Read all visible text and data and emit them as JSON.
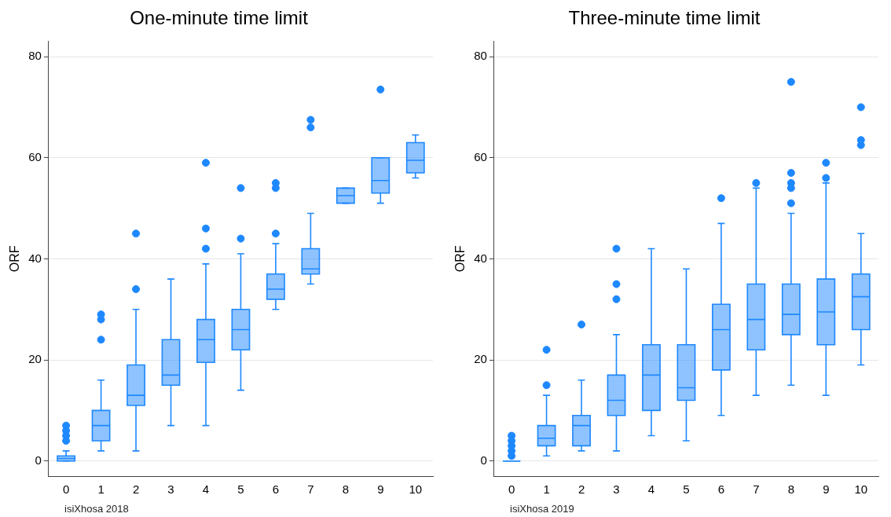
{
  "chart_data": [
    {
      "type": "box",
      "title": "One-minute time limit",
      "ylabel": "ORF",
      "categories": [
        "0",
        "1",
        "2",
        "3",
        "4",
        "5",
        "6",
        "7",
        "8",
        "9",
        "10"
      ],
      "color": "#1e88ff",
      "ylim": [
        -3,
        83
      ],
      "yticks": [
        0,
        20,
        40,
        60,
        80
      ],
      "grid": "y",
      "annotations": [
        "isiXhosa 2018"
      ],
      "boxes": [
        {
          "low": 0,
          "q1": 0,
          "median": 0.5,
          "q3": 1,
          "high": 2,
          "outliers": [
            4,
            5,
            6,
            7
          ]
        },
        {
          "low": 2,
          "q1": 4,
          "median": 7,
          "q3": 10,
          "high": 16,
          "outliers": [
            24,
            28,
            29
          ]
        },
        {
          "low": 2,
          "q1": 11,
          "median": 13,
          "q3": 19,
          "high": 30,
          "outliers": [
            34,
            45
          ]
        },
        {
          "low": 7,
          "q1": 15,
          "median": 17,
          "q3": 24,
          "high": 36
        },
        {
          "low": 7,
          "q1": 19.5,
          "median": 24,
          "q3": 28,
          "high": 39,
          "outliers": [
            42,
            46,
            59
          ]
        },
        {
          "low": 14,
          "q1": 22,
          "median": 26,
          "q3": 30,
          "high": 41,
          "outliers": [
            44,
            54
          ]
        },
        {
          "low": 30,
          "q1": 32,
          "median": 34,
          "q3": 37,
          "high": 43,
          "outliers": [
            45,
            54,
            55
          ]
        },
        {
          "low": 35,
          "q1": 37,
          "median": 38,
          "q3": 42,
          "high": 49,
          "outliers": [
            66,
            67.5
          ]
        },
        {
          "low": 51,
          "q1": 51,
          "median": 52.5,
          "q3": 54,
          "high": 54
        },
        {
          "low": 51,
          "q1": 53,
          "median": 55.5,
          "q3": 60,
          "high": 60,
          "outliers": [
            73.5
          ]
        },
        {
          "low": 56,
          "q1": 57,
          "median": 59.5,
          "q3": 63,
          "high": 64.5
        }
      ]
    },
    {
      "type": "box",
      "title": "Three-minute time limit",
      "ylabel": "ORF",
      "categories": [
        "0",
        "1",
        "2",
        "3",
        "4",
        "5",
        "6",
        "7",
        "8",
        "9",
        "10"
      ],
      "color": "#1e88ff",
      "ylim": [
        -3,
        83
      ],
      "yticks": [
        0,
        20,
        40,
        60,
        80
      ],
      "grid": "y",
      "annotations": [
        "isiXhosa 2019"
      ],
      "boxes": [
        {
          "low": 0,
          "q1": 0,
          "median": 0,
          "q3": 0,
          "high": 0,
          "outliers": [
            1,
            2,
            3,
            4,
            5
          ]
        },
        {
          "low": 1,
          "q1": 3,
          "median": 4.5,
          "q3": 7,
          "high": 13,
          "outliers": [
            15,
            22
          ]
        },
        {
          "low": 2,
          "q1": 3,
          "median": 7,
          "q3": 9,
          "high": 16,
          "outliers": [
            27
          ]
        },
        {
          "low": 2,
          "q1": 9,
          "median": 12,
          "q3": 17,
          "high": 25,
          "outliers": [
            32,
            35,
            42
          ]
        },
        {
          "low": 5,
          "q1": 10,
          "median": 17,
          "q3": 23,
          "high": 42
        },
        {
          "low": 4,
          "q1": 12,
          "median": 14.5,
          "q3": 23,
          "high": 38
        },
        {
          "low": 9,
          "q1": 18,
          "median": 26,
          "q3": 31,
          "high": 47,
          "outliers": [
            52
          ]
        },
        {
          "low": 13,
          "q1": 22,
          "median": 28,
          "q3": 35,
          "high": 54,
          "outliers": [
            55
          ]
        },
        {
          "low": 15,
          "q1": 25,
          "median": 29,
          "q3": 35,
          "high": 49,
          "outliers": [
            51,
            54,
            55,
            57,
            75
          ]
        },
        {
          "low": 13,
          "q1": 23,
          "median": 29.5,
          "q3": 36,
          "high": 55,
          "outliers": [
            56,
            59
          ]
        },
        {
          "low": 19,
          "q1": 26,
          "median": 32.5,
          "q3": 37,
          "high": 45,
          "outliers": [
            62.5,
            63.5,
            70
          ]
        }
      ]
    }
  ]
}
